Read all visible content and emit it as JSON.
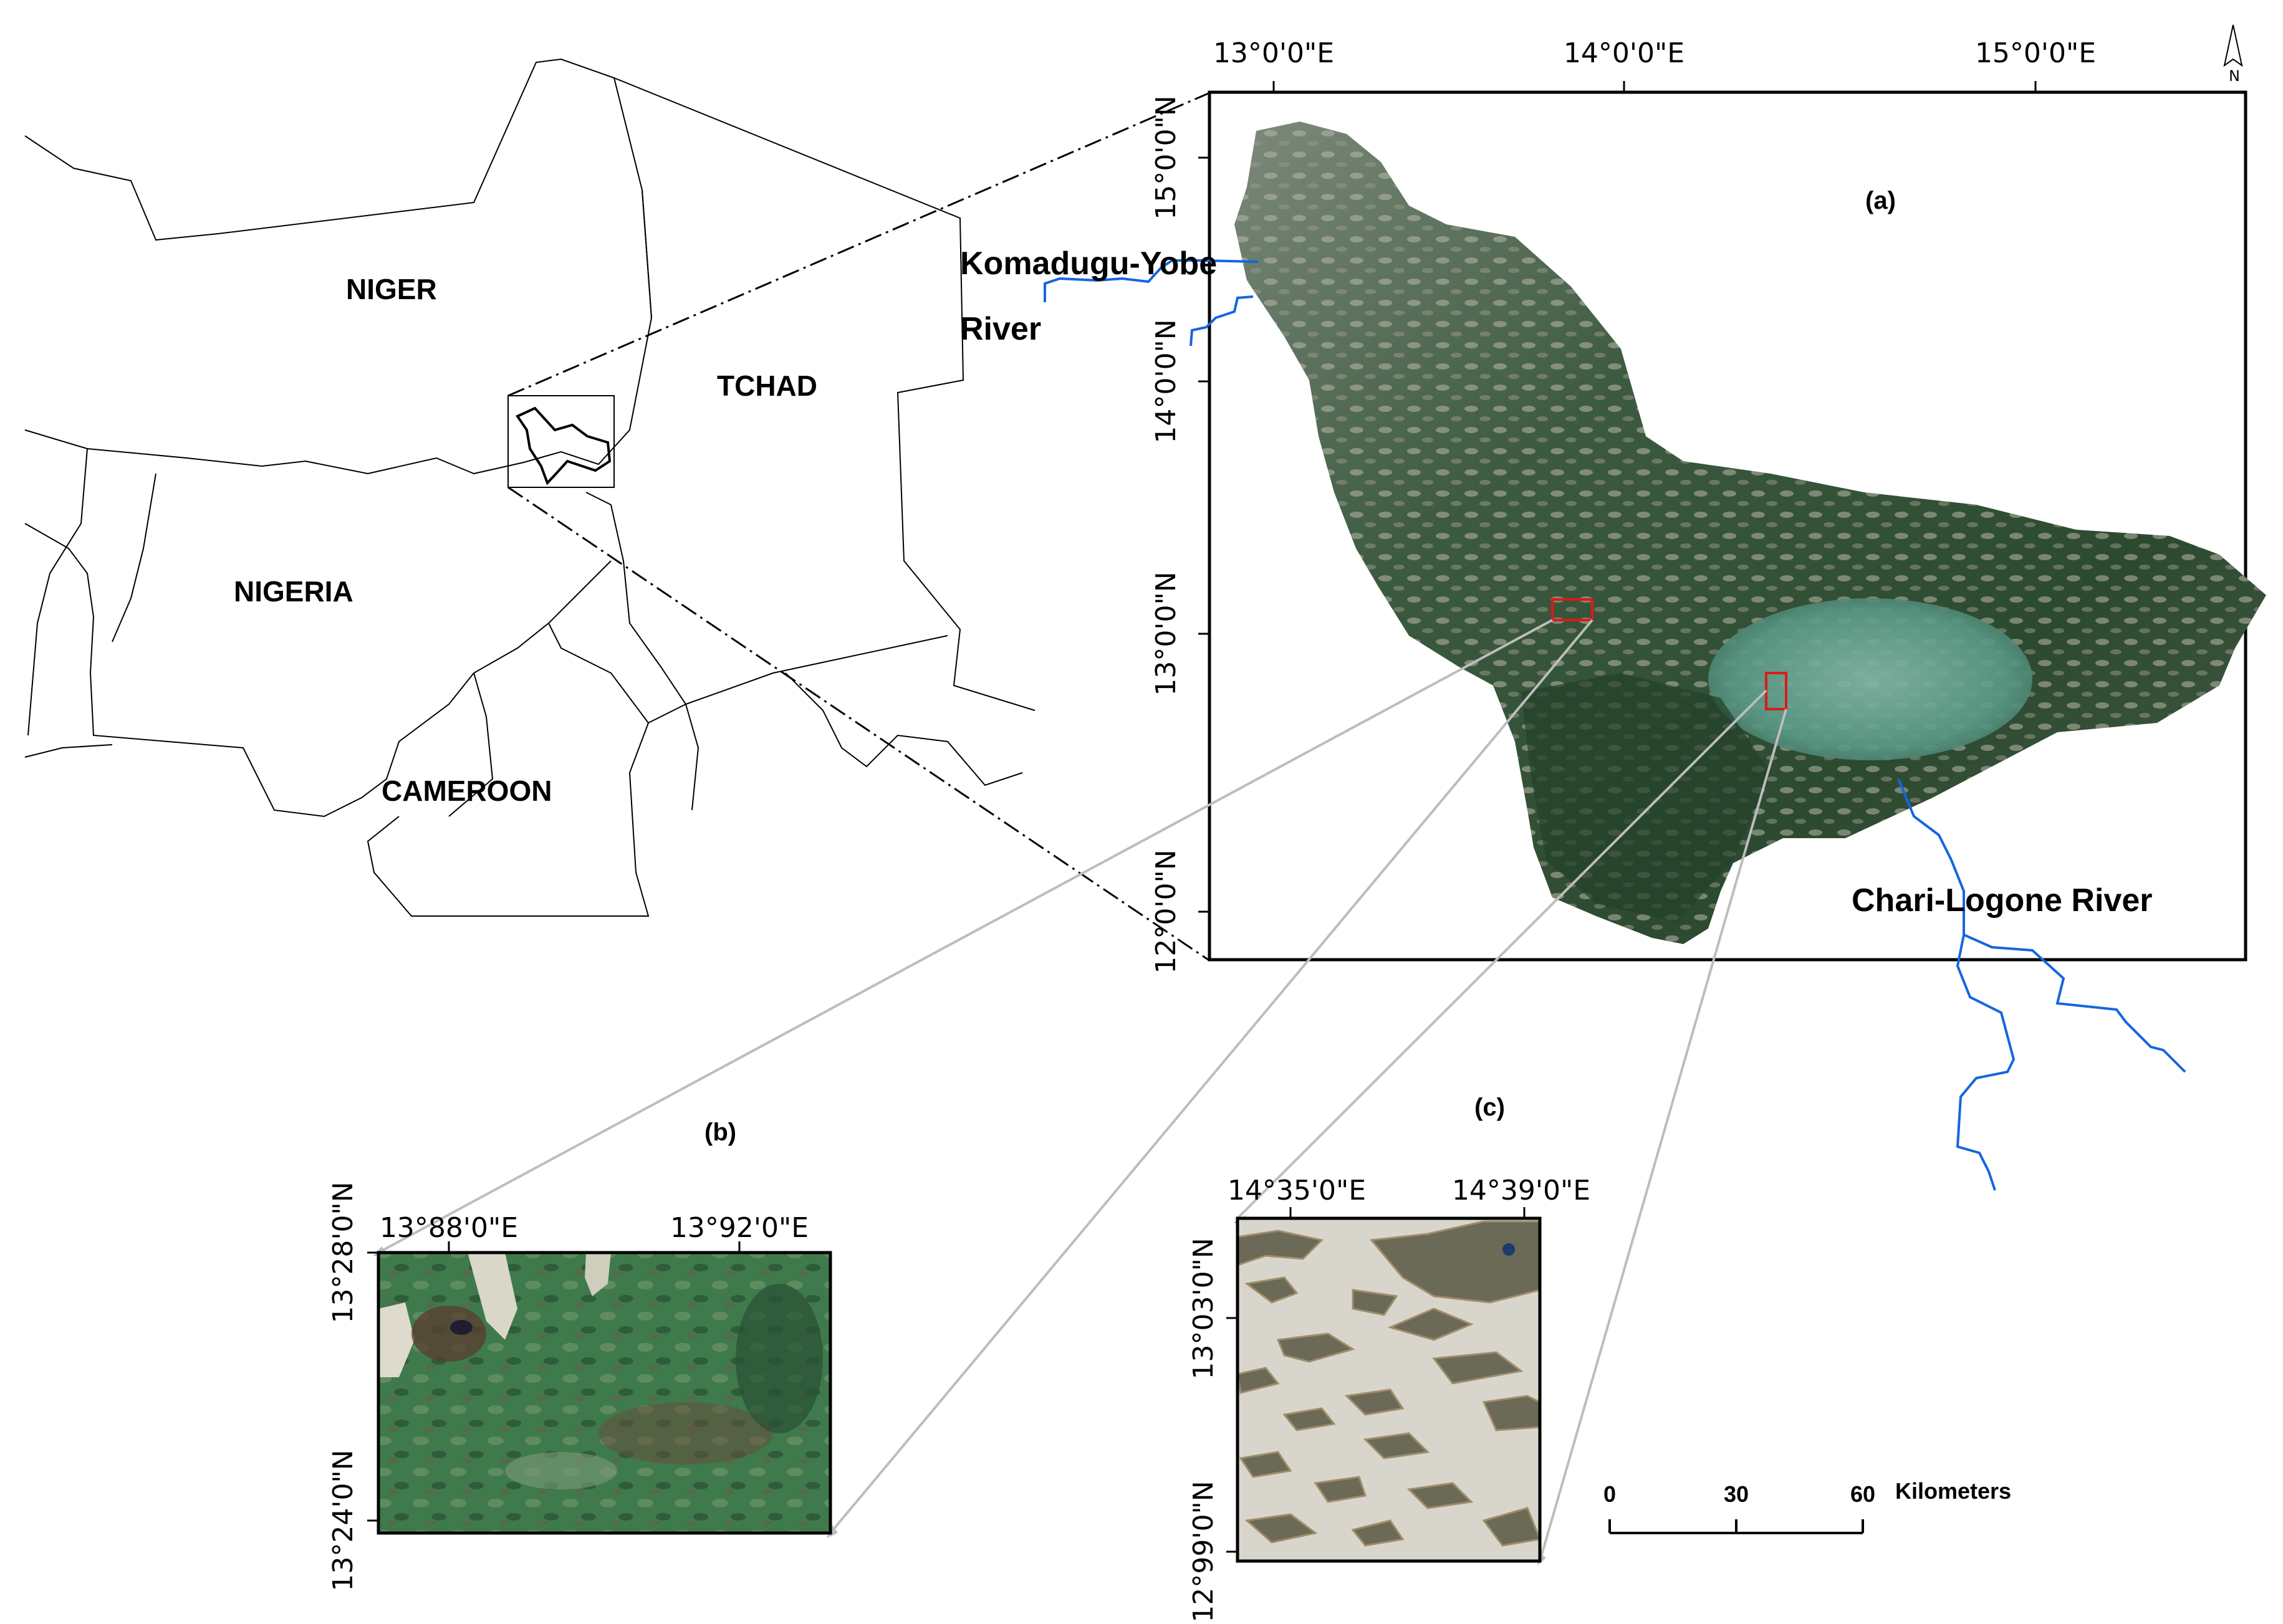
{
  "countries": [
    "NIGER",
    "TCHAD",
    "NIGERIA",
    "CAMEROON"
  ],
  "rivers": {
    "north": [
      "Komadugu-Yobe",
      "River"
    ],
    "south": "Chari-Logone River"
  },
  "panel_a": {
    "label": "(a)",
    "lon_ticks": [
      "13°0'0\"E",
      "14°0'0\"E",
      "15°0'0\"E"
    ],
    "lat_ticks": [
      "15°0'0\"N",
      "14°0'0\"N",
      "13°0'0\"N",
      "12°0'0\"N"
    ],
    "north_letter": "N"
  },
  "panel_b": {
    "label": "(b)",
    "lon_ticks": [
      "13°88'0\"E",
      "13°92'0\"E"
    ],
    "lat_ticks": [
      "13°28'0\"N",
      "13°24'0\"N"
    ]
  },
  "panel_c": {
    "label": "(c)",
    "lon_ticks": [
      "14°35'0\"E",
      "14°39'0\"E"
    ],
    "lat_ticks": [
      "13°03'0\"N",
      "12°99'0\"N"
    ]
  },
  "scale_bar": {
    "ticks": [
      "0",
      "30",
      "60"
    ],
    "unit": "Kilometers"
  },
  "colors": {
    "river": "#1565e0",
    "highlight": "#e01818",
    "vegetation": "#2e4a33",
    "water": "#6aa594"
  }
}
